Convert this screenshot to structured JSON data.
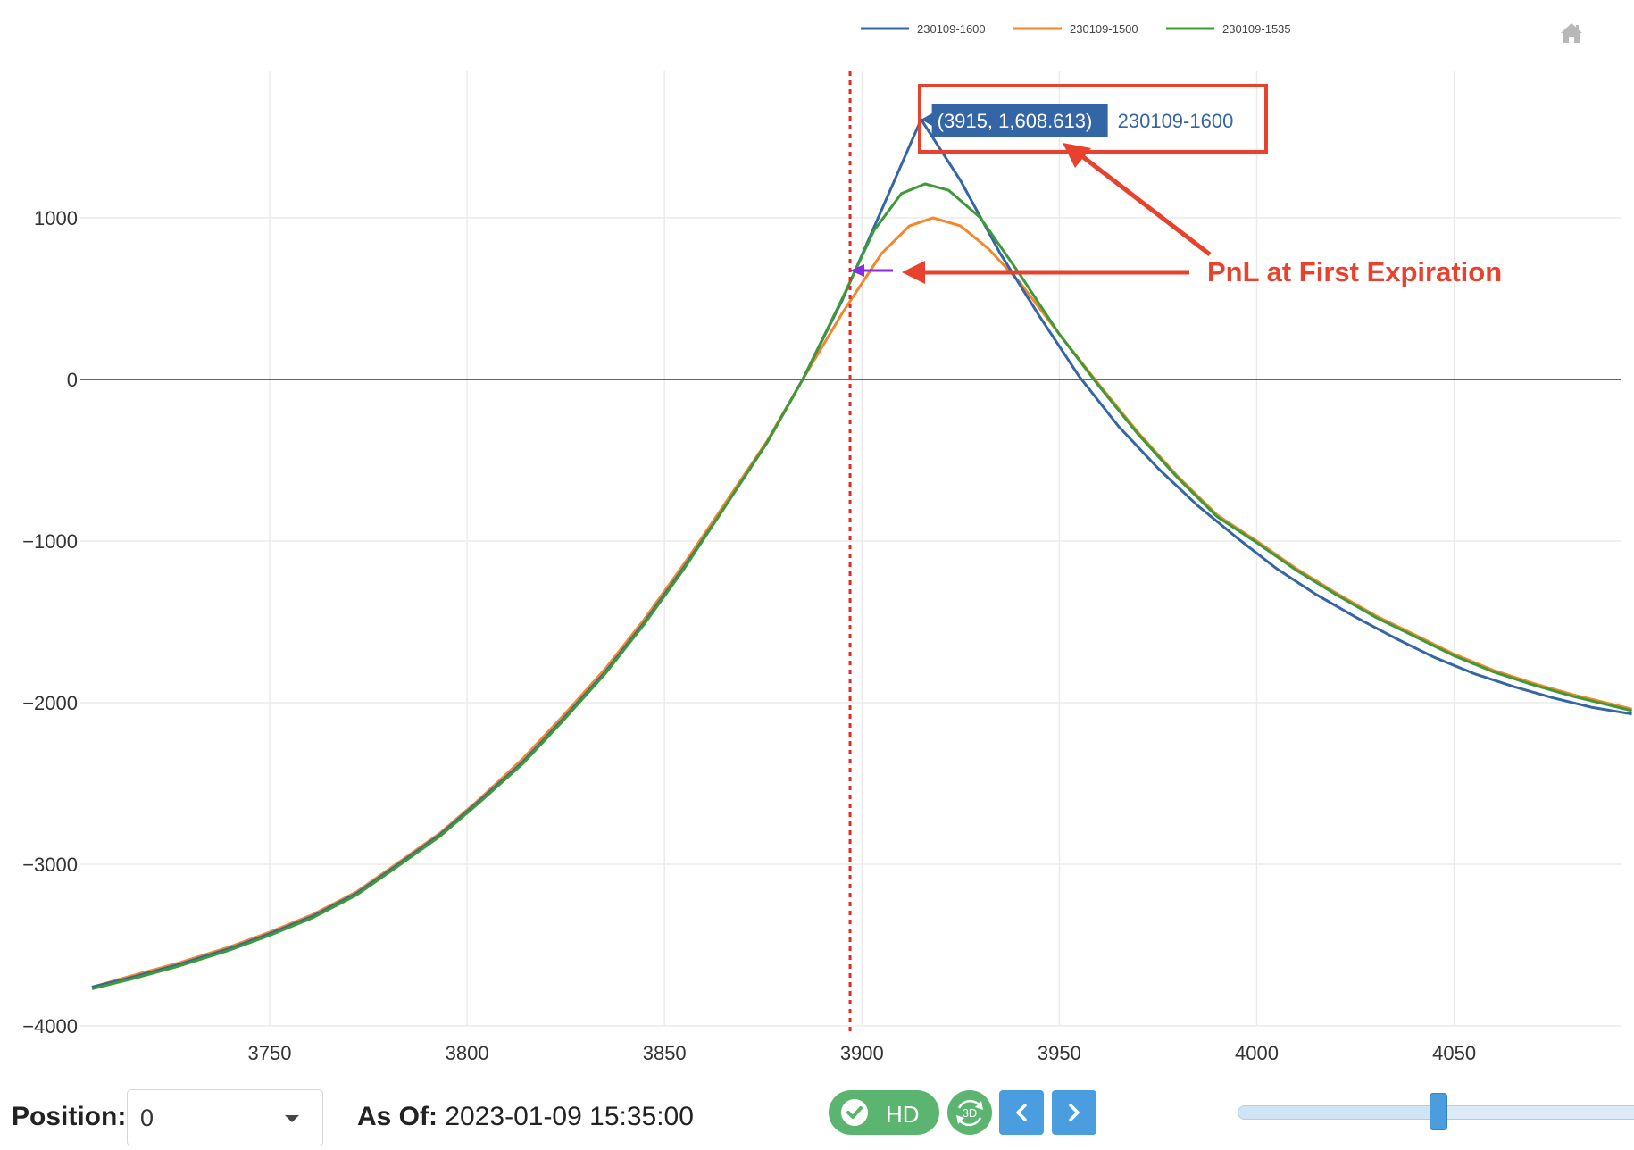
{
  "chart_data": {
    "type": "line",
    "title": "",
    "xlabel": "",
    "ylabel": "",
    "xlim": [
      3705,
      4095
    ],
    "ylim": [
      -4000,
      1700
    ],
    "x_ticks": [
      3750,
      3800,
      3850,
      3900,
      3950,
      4000,
      4050
    ],
    "y_ticks": [
      1000,
      0,
      -1000,
      -2000,
      -3000,
      -4000
    ],
    "x_tick_labels": [
      "3750",
      "3800",
      "3850",
      "3900",
      "3950",
      "4000",
      "4050"
    ],
    "y_tick_labels": [
      "1000",
      "0",
      "−1000",
      "−2000",
      "−3000",
      "−4000"
    ],
    "grid": true,
    "legend_position": "top-center",
    "zero_line": 0,
    "vertical_marker": {
      "x": 3897,
      "style": "dotted",
      "color": "#e8281e"
    },
    "series": [
      {
        "name": "230109-1600",
        "color": "#3466a5",
        "x": [
          3705,
          3715,
          3727,
          3740,
          3750,
          3761,
          3772,
          3782,
          3793,
          3803,
          3814,
          3824,
          3835,
          3845,
          3855,
          3865,
          3876,
          3885,
          3895,
          3905,
          3915,
          3925,
          3935,
          3945,
          3955,
          3965,
          3975,
          3985,
          3995,
          4005,
          4015,
          4025,
          4035,
          4045,
          4055,
          4065,
          4075,
          4085,
          4095
        ],
        "y": [
          -3760,
          -3700,
          -3620,
          -3520,
          -3430,
          -3320,
          -3180,
          -3010,
          -2820,
          -2610,
          -2370,
          -2110,
          -1810,
          -1500,
          -1160,
          -800,
          -390,
          0,
          490,
          1050,
          1608.613,
          1230,
          780,
          390,
          20,
          -290,
          -550,
          -780,
          -980,
          -1170,
          -1330,
          -1470,
          -1600,
          -1720,
          -1820,
          -1900,
          -1970,
          -2030,
          -2070
        ]
      },
      {
        "name": "230109-1500",
        "color": "#f5862a",
        "x": [
          3705,
          3715,
          3727,
          3740,
          3750,
          3761,
          3772,
          3782,
          3793,
          3803,
          3814,
          3824,
          3835,
          3845,
          3855,
          3865,
          3876,
          3885,
          3895,
          3905,
          3912,
          3918,
          3925,
          3932,
          3940,
          3950,
          3960,
          3970,
          3980,
          3990,
          4000,
          4010,
          4020,
          4030,
          4040,
          4050,
          4060,
          4070,
          4080,
          4095
        ],
        "y": [
          -3760,
          -3690,
          -3610,
          -3510,
          -3420,
          -3310,
          -3170,
          -3000,
          -2810,
          -2600,
          -2350,
          -2090,
          -1790,
          -1480,
          -1140,
          -780,
          -380,
          0,
          410,
          780,
          950,
          1000,
          950,
          810,
          600,
          280,
          -30,
          -330,
          -600,
          -840,
          -1000,
          -1170,
          -1320,
          -1460,
          -1580,
          -1700,
          -1800,
          -1880,
          -1950,
          -2040
        ]
      },
      {
        "name": "230109-1535",
        "color": "#3d9a36",
        "x": [
          3705,
          3715,
          3727,
          3740,
          3750,
          3761,
          3772,
          3782,
          3793,
          3803,
          3814,
          3824,
          3835,
          3845,
          3855,
          3865,
          3876,
          3885,
          3895,
          3903,
          3910,
          3916,
          3922,
          3930,
          3940,
          3950,
          3960,
          3970,
          3980,
          3990,
          4000,
          4010,
          4020,
          4030,
          4040,
          4050,
          4060,
          4070,
          4080,
          4095
        ],
        "y": [
          -3770,
          -3710,
          -3630,
          -3530,
          -3440,
          -3330,
          -3190,
          -3020,
          -2830,
          -2620,
          -2380,
          -2120,
          -1820,
          -1510,
          -1170,
          -800,
          -390,
          0,
          500,
          920,
          1150,
          1210,
          1170,
          1000,
          650,
          280,
          -40,
          -340,
          -610,
          -850,
          -1010,
          -1180,
          -1330,
          -1470,
          -1590,
          -1710,
          -1810,
          -1890,
          -1960,
          -2050
        ]
      }
    ],
    "annotations": {
      "tooltip": {
        "point_label": "(3915, 1,608.613)",
        "series_label": "230109-1600"
      },
      "callout_text": "PnL at First Expiration"
    }
  },
  "controls": {
    "position_label": "Position:",
    "position_value": "0",
    "asof_label": "As Of:",
    "asof_value": "2023-01-09 15:35:00",
    "hd_label": "HD",
    "btn_3d_label": "3D",
    "slider_value_fraction": 0.49
  },
  "icons": {
    "home": "home-icon",
    "check": "check-icon",
    "prev": "chevron-left-icon",
    "next": "chevron-right-icon",
    "rotate3d": "rotate-3d-icon",
    "caret": "caret-down-icon"
  },
  "colors": {
    "annotation_red": "#e8412e",
    "marker_red": "#e8281e",
    "purple_arrow": "#8a2be2",
    "tooltip_bg": "#3466a5",
    "button_green": "#5bb46f",
    "button_blue": "#4a9ee0"
  }
}
